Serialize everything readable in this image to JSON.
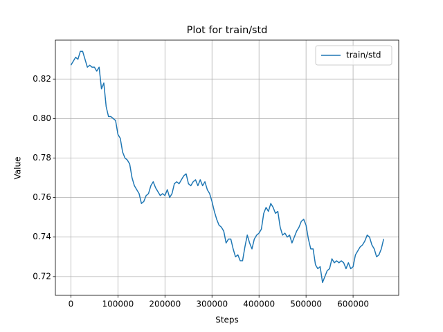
{
  "chart_data": {
    "type": "line",
    "title": "Plot for train/std",
    "xlabel": "Steps",
    "ylabel": "Value",
    "x": [
      0,
      10000,
      15000,
      20000,
      25000,
      30000,
      35000,
      40000,
      45000,
      50000,
      55000,
      60000,
      65000,
      70000,
      75000,
      80000,
      85000,
      90000,
      95000,
      100000,
      105000,
      110000,
      115000,
      120000,
      125000,
      130000,
      135000,
      140000,
      145000,
      150000,
      155000,
      160000,
      165000,
      170000,
      175000,
      180000,
      185000,
      190000,
      195000,
      200000,
      205000,
      210000,
      215000,
      220000,
      225000,
      230000,
      235000,
      240000,
      245000,
      250000,
      255000,
      260000,
      265000,
      270000,
      275000,
      280000,
      285000,
      290000,
      295000,
      300000,
      305000,
      310000,
      315000,
      320000,
      325000,
      330000,
      335000,
      340000,
      345000,
      350000,
      355000,
      360000,
      365000,
      370000,
      375000,
      380000,
      385000,
      390000,
      395000,
      400000,
      405000,
      410000,
      415000,
      420000,
      425000,
      430000,
      435000,
      440000,
      445000,
      450000,
      455000,
      460000,
      465000,
      470000,
      475000,
      480000,
      485000,
      490000,
      495000,
      500000,
      505000,
      510000,
      515000,
      520000,
      525000,
      530000,
      535000,
      540000,
      545000,
      550000,
      555000,
      560000,
      565000,
      570000,
      575000,
      580000,
      585000,
      590000,
      595000,
      600000,
      605000,
      610000,
      615000,
      620000,
      625000,
      630000,
      635000,
      640000,
      645000,
      650000,
      655000,
      660000,
      665000
    ],
    "series": [
      {
        "name": "train/std",
        "color": "#1f77b4",
        "values": [
          0.827,
          0.831,
          0.83,
          0.834,
          0.834,
          0.83,
          0.826,
          0.827,
          0.826,
          0.826,
          0.824,
          0.826,
          0.815,
          0.818,
          0.806,
          0.801,
          0.801,
          0.8,
          0.799,
          0.792,
          0.79,
          0.783,
          0.78,
          0.779,
          0.777,
          0.77,
          0.766,
          0.764,
          0.762,
          0.757,
          0.758,
          0.761,
          0.762,
          0.766,
          0.768,
          0.765,
          0.763,
          0.761,
          0.762,
          0.761,
          0.764,
          0.76,
          0.762,
          0.767,
          0.768,
          0.767,
          0.769,
          0.771,
          0.772,
          0.767,
          0.766,
          0.768,
          0.769,
          0.766,
          0.769,
          0.766,
          0.768,
          0.764,
          0.762,
          0.758,
          0.753,
          0.749,
          0.746,
          0.745,
          0.743,
          0.737,
          0.739,
          0.739,
          0.734,
          0.73,
          0.731,
          0.728,
          0.728,
          0.735,
          0.741,
          0.737,
          0.734,
          0.739,
          0.741,
          0.742,
          0.744,
          0.752,
          0.755,
          0.753,
          0.757,
          0.755,
          0.752,
          0.753,
          0.745,
          0.741,
          0.742,
          0.74,
          0.741,
          0.737,
          0.74,
          0.743,
          0.745,
          0.748,
          0.749,
          0.746,
          0.739,
          0.734,
          0.734,
          0.726,
          0.724,
          0.725,
          0.717,
          0.72,
          0.723,
          0.724,
          0.729,
          0.727,
          0.728,
          0.727,
          0.728,
          0.727,
          0.724,
          0.727,
          0.724,
          0.725,
          0.731,
          0.733,
          0.735,
          0.736,
          0.738,
          0.741,
          0.74,
          0.736,
          0.734,
          0.73,
          0.731,
          0.734,
          0.739
        ]
      }
    ],
    "xlim": [
      -33000,
      697000
    ],
    "ylim": [
      0.7105,
      0.8397
    ],
    "xticks": [
      0,
      100000,
      200000,
      300000,
      400000,
      500000,
      600000
    ],
    "yticks": [
      0.72,
      0.74,
      0.76,
      0.78,
      {
        "value": 0.8,
        "label": "0.80"
      },
      0.82
    ],
    "grid": true,
    "legend": "upper right"
  }
}
